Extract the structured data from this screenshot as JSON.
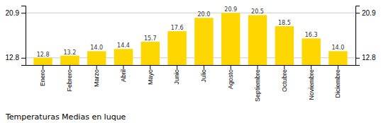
{
  "chart_data": {
    "type": "bar",
    "title": "Temperaturas Medias en luque",
    "categories": [
      "Enero",
      "Febrero",
      "Marzo",
      "Abril",
      "Mayo",
      "Junio",
      "Julio",
      "Agosto",
      "Septiembre",
      "Octubre",
      "Noviembre",
      "Diciembre"
    ],
    "values": [
      12.8,
      13.2,
      14.0,
      14.4,
      15.7,
      17.6,
      20.0,
      20.9,
      20.5,
      18.5,
      16.3,
      14.0
    ],
    "color": "#FFD700",
    "ylim": [
      11.5,
      22.2
    ],
    "yticks": [
      12.8,
      20.9
    ],
    "y2lim": [
      11.5,
      22.2
    ],
    "y2ticks": [
      12.8,
      20.9
    ],
    "grid": true,
    "data_labels": true
  }
}
